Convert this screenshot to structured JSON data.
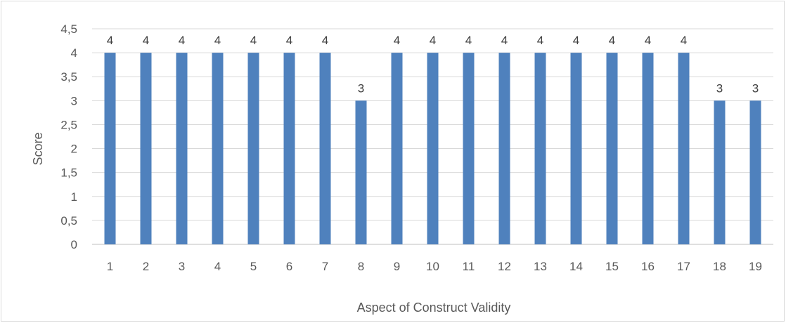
{
  "chart_data": {
    "type": "bar",
    "title": "",
    "xlabel": "Aspect of Construct Validity",
    "ylabel": "Score",
    "categories": [
      "1",
      "2",
      "3",
      "4",
      "5",
      "6",
      "7",
      "8",
      "9",
      "10",
      "11",
      "12",
      "13",
      "14",
      "15",
      "16",
      "17",
      "18",
      "19"
    ],
    "series": [
      {
        "values": [
          4,
          4,
          4,
          4,
          4,
          4,
          4,
          3,
          4,
          4,
          4,
          4,
          4,
          4,
          4,
          4,
          4,
          3,
          3
        ],
        "color": "#4f81bd"
      }
    ],
    "data_labels": [
      "4",
      "4",
      "4",
      "4",
      "4",
      "4",
      "4",
      "3",
      "4",
      "4",
      "4",
      "4",
      "4",
      "4",
      "4",
      "4",
      "4",
      "3",
      "3"
    ],
    "ylim": [
      0,
      4.5
    ],
    "yticks": [
      0,
      0.5,
      1,
      1.5,
      2,
      2.5,
      3,
      3.5,
      4,
      4.5
    ],
    "ytick_labels": [
      "0",
      "0,5",
      "1",
      "1,5",
      "2",
      "2,5",
      "3",
      "3,5",
      "4",
      "4,5"
    ],
    "grid": true,
    "legend": "none",
    "colors": {
      "bar": "#4f81bd",
      "gridline": "#d9d9d9",
      "axis_line": "#bfbfbf",
      "text": "#595959"
    }
  }
}
